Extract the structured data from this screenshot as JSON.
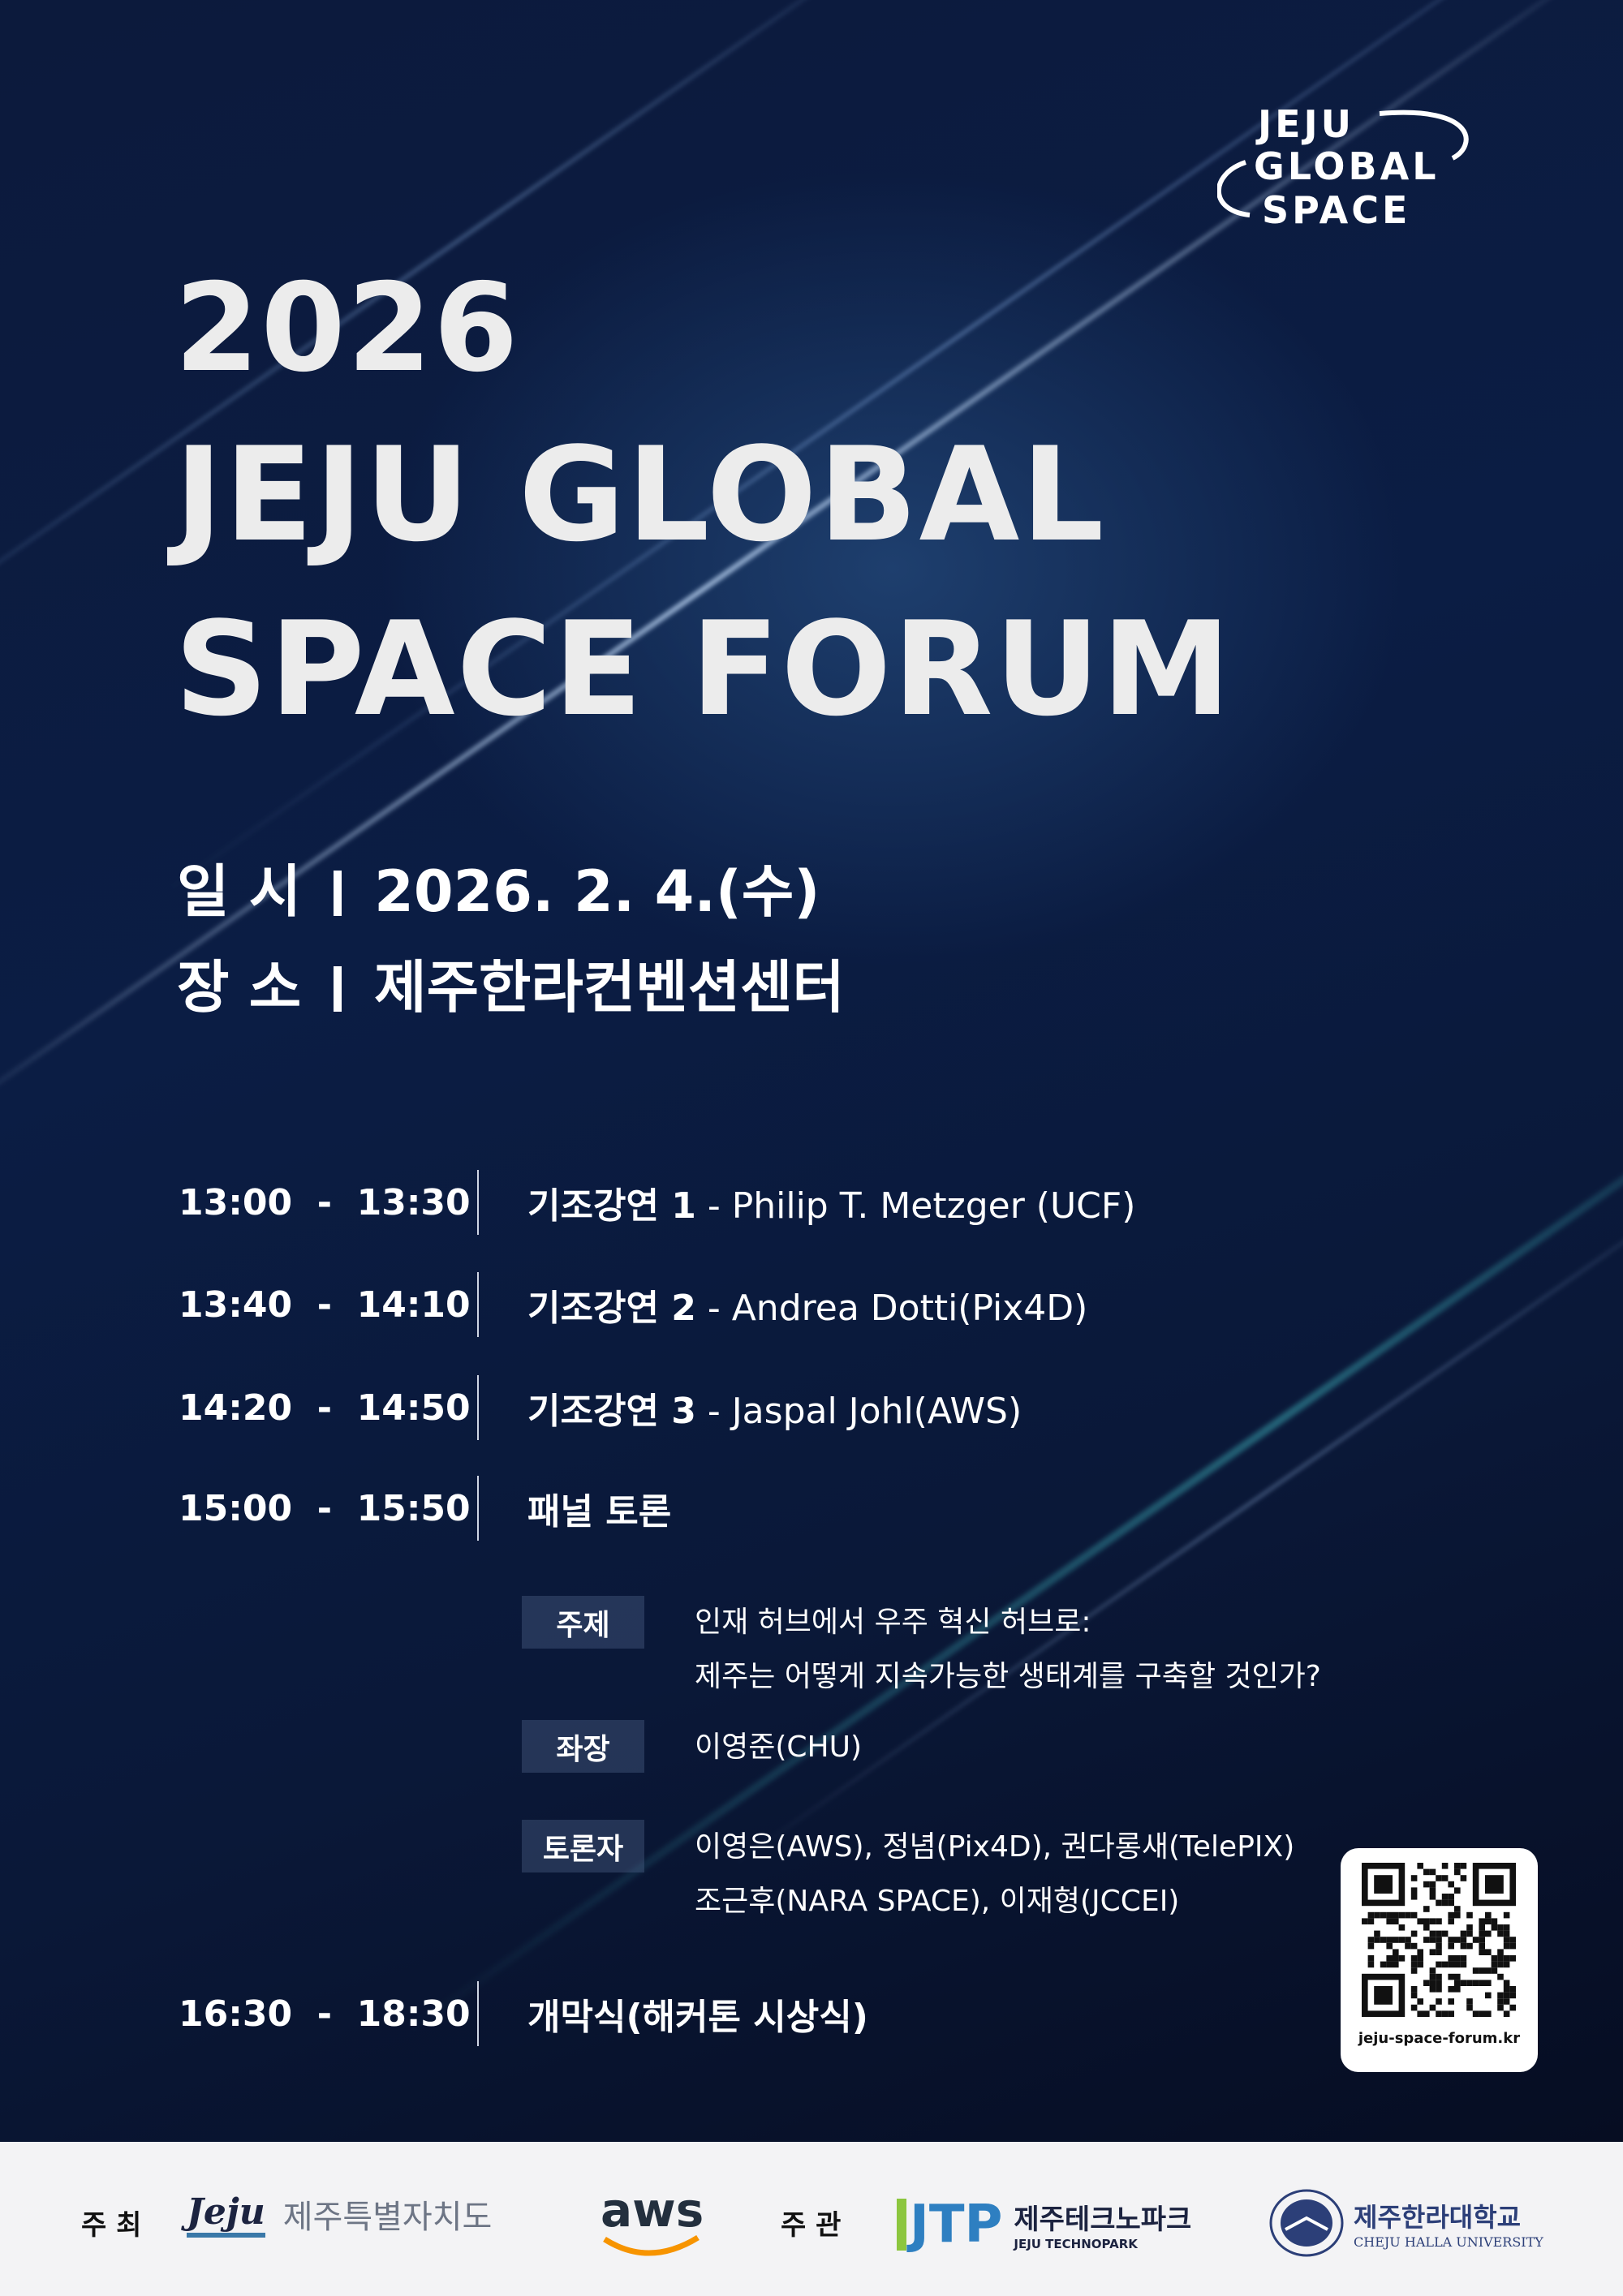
{
  "logo": {
    "line1": "JEJU",
    "line2": "GLOBAL",
    "line3": "SPACE"
  },
  "title": {
    "year": "2026",
    "line1": "JEJU GLOBAL",
    "line2": "SPACE FORUM"
  },
  "info": {
    "date_label": "일 시",
    "date": "2026. 2. 4.(수)",
    "place_label": "장 소",
    "place": "제주한라컨벤션센터"
  },
  "schedule": [
    {
      "time": "13:00  -  13:30",
      "title": "기조강연 1",
      "detail": " - Philip T. Metzger (UCF)"
    },
    {
      "time": "13:40  -  14:10",
      "title": "기조강연 2",
      "detail": " - Andrea Dotti(Pix4D)"
    },
    {
      "time": "14:20  -  14:50",
      "title": "기조강연 3",
      "detail": " - Jaspal Johl(AWS)"
    },
    {
      "time": "15:00  -  15:50",
      "title": "패널 토론",
      "detail": ""
    },
    {
      "time": "16:30  -  18:30",
      "title": "개막식(해커톤 시상식)",
      "detail": ""
    }
  ],
  "panel": [
    {
      "label": "주제",
      "lines": [
        "인재 허브에서 우주 혁신 허브로:",
        "제주는 어떻게 지속가능한 생태계를 구축할 것인가?"
      ]
    },
    {
      "label": "좌장",
      "lines": [
        "이영준(CHU)"
      ]
    },
    {
      "label": "토론자",
      "lines": [
        "이영은(AWS), 정념(Pix4D), 권다롱새(TelePIX)",
        "조근후(NARA SPACE), 이재형(JCCEI)"
      ]
    }
  ],
  "qr": {
    "caption": "jeju-space-forum.kr"
  },
  "footer": {
    "host_label": "주 최",
    "host1_logo": "Jeju",
    "host1": "제주특별자치도",
    "host2": "aws",
    "org_label": "주 관",
    "org1_logo": "JTP",
    "org1": "제주테크노파크",
    "org1_en": "JEJU TECHNOPARK",
    "org2": "제주한라대학교",
    "org2_en": "CHEJU HALLA UNIVERSITY"
  },
  "colors": {
    "background": "#0a1838",
    "text": "#ffffff",
    "footer_bg": "#f3f3f5",
    "aws_orange": "#f79400",
    "jtp_green": "#8cc63f",
    "jtp_blue": "#2e7fc1"
  }
}
